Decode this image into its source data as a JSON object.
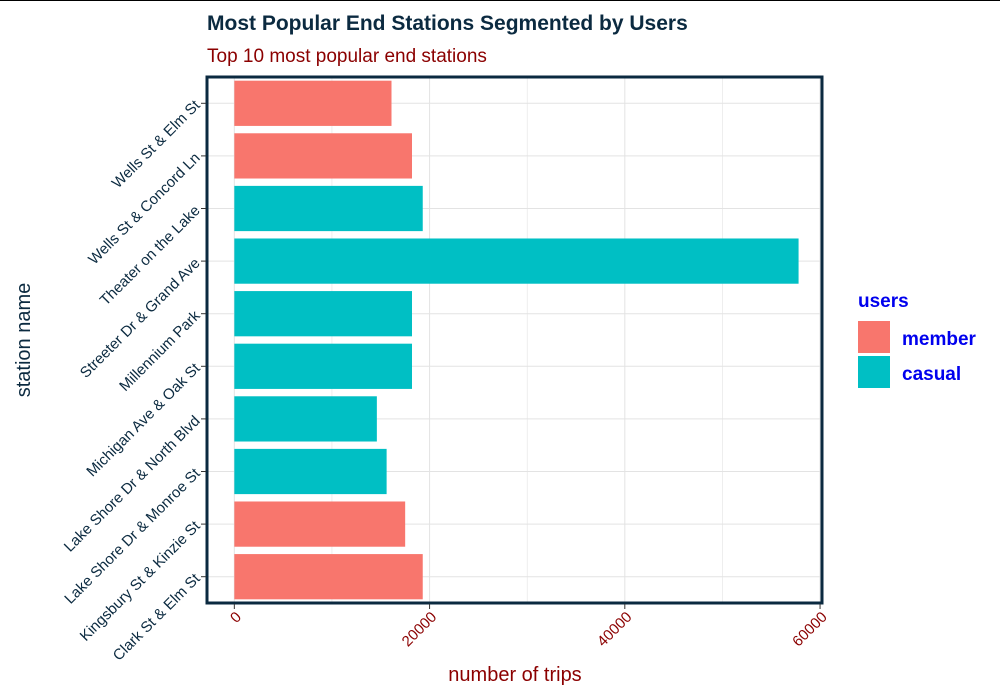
{
  "chart_data": {
    "type": "bar",
    "orientation": "horizontal",
    "title": "Most Popular End Stations Segmented by Users",
    "subtitle": "Top 10 most popular end stations",
    "xlabel": "number of trips",
    "ylabel": "station name",
    "xlim": [
      -2800,
      60200
    ],
    "x_ticks": [
      0,
      20000,
      40000,
      60000
    ],
    "x_tick_labels": [
      "0",
      "20000",
      "40000",
      "60000"
    ],
    "grid": true,
    "legend": {
      "title": "users",
      "position": "right",
      "entries": [
        {
          "label": "member",
          "color": "#F8766D"
        },
        {
          "label": "casual",
          "color": "#00BFC4"
        }
      ]
    },
    "categories": [
      "Wells St & Elm St",
      "Wells St & Concord Ln",
      "Theater on the Lake",
      "Streeter Dr & Grand Ave",
      "Millennium Park",
      "Michigan Ave & Oak St",
      "Lake Shore Dr & North Blvd",
      "Lake Shore Dr & Monroe St",
      "Kingsbury St & Kinzie St",
      "Clark St & Elm St"
    ],
    "bars": [
      {
        "station": "Wells St & Elm St",
        "users": "member",
        "value": 16100
      },
      {
        "station": "Wells St & Concord Ln",
        "users": "member",
        "value": 18200
      },
      {
        "station": "Theater on the Lake",
        "users": "casual",
        "value": 19300
      },
      {
        "station": "Streeter Dr & Grand Ave",
        "users": "casual",
        "value": 57800
      },
      {
        "station": "Millennium Park",
        "users": "casual",
        "value": 18200
      },
      {
        "station": "Michigan Ave & Oak St",
        "users": "casual",
        "value": 18200
      },
      {
        "station": "Lake Shore Dr & North Blvd",
        "users": "casual",
        "value": 14600
      },
      {
        "station": "Lake Shore Dr & Monroe St",
        "users": "casual",
        "value": 15600
      },
      {
        "station": "Kingsbury St & Kinzie St",
        "users": "member",
        "value": 17500
      },
      {
        "station": "Clark St & Elm St",
        "users": "member",
        "value": 19300
      }
    ],
    "colors": {
      "title": "#0B2A40",
      "subtitle": "#8B0000",
      "axis_title_x": "#8B0000",
      "axis_title_y": "#0B2A40",
      "x_tick_text": "#8B0000",
      "y_tick_text": "#0B2A40",
      "panel_border": "#0B2A40",
      "grid": "#E3E3E3",
      "legend_text": "#0000EE"
    }
  }
}
